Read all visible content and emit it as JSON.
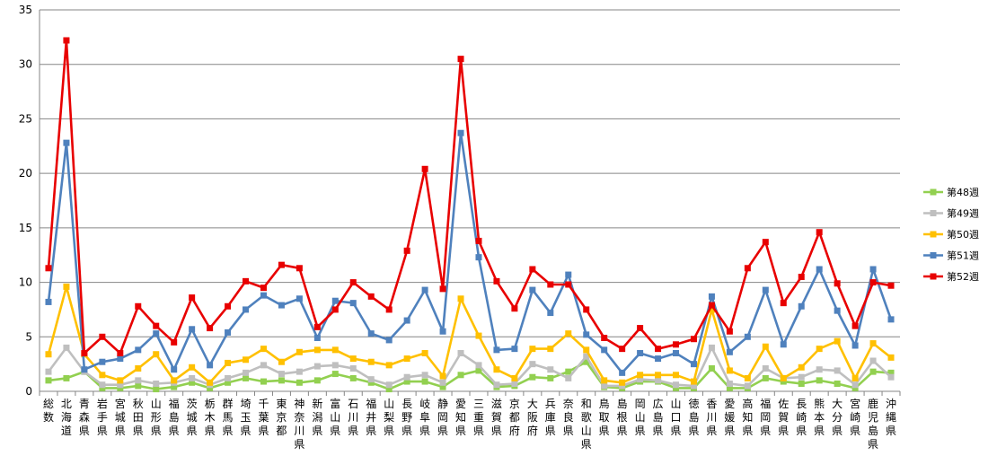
{
  "chart_data": {
    "type": "line",
    "title": "",
    "xlabel": "",
    "ylabel": "",
    "ylim": [
      0,
      35
    ],
    "yticks": [
      0,
      5,
      10,
      15,
      20,
      25,
      30,
      35
    ],
    "grid": true,
    "legend_position": "right",
    "categories": [
      "総数",
      "北海道",
      "青森県",
      "岩手県",
      "宮城県",
      "秋田県",
      "山形県",
      "福島県",
      "茨城県",
      "栃木県",
      "群馬県",
      "埼玉県",
      "千葉県",
      "東京都",
      "神奈川県",
      "新潟県",
      "富山県",
      "石川県",
      "福井県",
      "山梨県",
      "長野県",
      "岐阜県",
      "静岡県",
      "愛知県",
      "三重県",
      "滋賀県",
      "京都府",
      "大阪府",
      "兵庫県",
      "奈良県",
      "和歌山県",
      "鳥取県",
      "島根県",
      "岡山県",
      "広島県",
      "山口県",
      "徳島県",
      "香川県",
      "愛媛県",
      "高知県",
      "福岡県",
      "佐賀県",
      "長崎県",
      "熊本県",
      "大分県",
      "宮崎県",
      "鹿児島県",
      "沖縄県"
    ],
    "series": [
      {
        "name": "第48週",
        "color": "#92D050",
        "values": [
          1.0,
          1.2,
          1.8,
          0.3,
          0.3,
          0.5,
          0.2,
          0.4,
          0.8,
          0.3,
          0.8,
          1.2,
          0.9,
          1.0,
          0.8,
          1.0,
          1.6,
          1.2,
          0.8,
          0.2,
          0.9,
          0.9,
          0.4,
          1.5,
          1.9,
          0.4,
          0.5,
          1.3,
          1.2,
          1.8,
          2.7,
          0.4,
          0.3,
          0.9,
          0.9,
          0.3,
          0.3,
          2.1,
          0.3,
          0.3,
          1.2,
          0.9,
          0.7,
          1.0,
          0.7,
          0.3,
          1.8,
          1.7
        ]
      },
      {
        "name": "第49週",
        "color": "#BFBFBF",
        "values": [
          1.8,
          4.0,
          1.8,
          0.6,
          0.6,
          1.0,
          0.7,
          0.8,
          1.2,
          0.6,
          1.2,
          1.7,
          2.4,
          1.6,
          1.8,
          2.3,
          2.4,
          2.1,
          1.1,
          0.6,
          1.3,
          1.5,
          0.8,
          3.5,
          2.4,
          0.6,
          0.7,
          2.5,
          2.0,
          1.2,
          3.2,
          0.5,
          0.5,
          1.1,
          1.0,
          0.6,
          0.5,
          4.0,
          0.7,
          0.5,
          2.1,
          1.2,
          1.3,
          2.0,
          1.9,
          0.6,
          2.8,
          1.3
        ]
      },
      {
        "name": "第50週",
        "color": "#FFC000",
        "values": [
          3.4,
          9.6,
          3.4,
          1.5,
          1.0,
          2.1,
          3.4,
          1.0,
          2.2,
          0.8,
          2.6,
          2.9,
          3.9,
          2.7,
          3.6,
          3.8,
          3.8,
          3.0,
          2.7,
          2.4,
          3.0,
          3.5,
          1.4,
          8.5,
          5.1,
          2.0,
          1.2,
          3.9,
          3.9,
          5.3,
          3.8,
          1.0,
          0.8,
          1.5,
          1.5,
          1.5,
          0.9,
          7.5,
          1.9,
          1.2,
          4.1,
          1.2,
          2.2,
          3.9,
          4.6,
          1.2,
          4.4,
          3.1
        ]
      },
      {
        "name": "第51週",
        "color": "#4F81BD",
        "values": [
          8.2,
          22.8,
          2.0,
          2.7,
          3.0,
          3.8,
          5.3,
          2.0,
          5.7,
          2.4,
          5.4,
          7.5,
          8.8,
          7.9,
          8.5,
          4.9,
          8.3,
          8.1,
          5.3,
          4.7,
          6.5,
          9.3,
          5.5,
          23.7,
          12.3,
          3.8,
          3.9,
          9.3,
          7.2,
          10.7,
          5.2,
          3.8,
          1.7,
          3.5,
          3.0,
          3.5,
          2.5,
          8.7,
          3.6,
          5.0,
          9.3,
          4.3,
          7.8,
          11.2,
          7.4,
          4.2,
          11.2,
          6.6
        ]
      },
      {
        "name": "第52週",
        "color": "#E80000",
        "values": [
          11.3,
          32.2,
          3.5,
          5.0,
          3.5,
          7.8,
          6.0,
          4.5,
          8.6,
          5.8,
          7.8,
          10.1,
          9.5,
          11.6,
          11.3,
          5.9,
          7.5,
          10.0,
          8.7,
          7.5,
          12.9,
          20.4,
          9.4,
          30.5,
          13.8,
          10.1,
          7.6,
          11.2,
          9.8,
          9.8,
          7.5,
          4.9,
          3.9,
          5.8,
          3.9,
          4.3,
          4.8,
          7.9,
          5.5,
          11.3,
          13.7,
          8.1,
          10.5,
          14.6,
          9.9,
          6.0,
          10.0,
          9.7
        ]
      }
    ]
  }
}
